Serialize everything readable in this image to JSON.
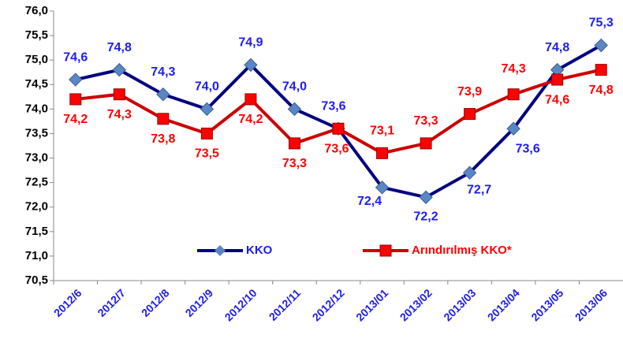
{
  "chart_data": {
    "type": "line",
    "categories": [
      "2012/6",
      "2012/7",
      "2012/8",
      "2012/9",
      "2012/10",
      "2012/11",
      "2012/12",
      "2013/01",
      "2013/02",
      "2013/03",
      "2013/04",
      "2013/05",
      "2013/06"
    ],
    "series": [
      {
        "name": "KKO",
        "color": "#000080",
        "marker_color": "#5b86c4",
        "label_color": "#1c1cf0",
        "values": [
          74.6,
          74.8,
          74.3,
          74.0,
          74.9,
          74.0,
          73.6,
          72.4,
          72.2,
          72.7,
          73.6,
          74.8,
          75.3
        ],
        "value_labels": [
          "74,6",
          "74,8",
          "74,3",
          "74,0",
          "74,9",
          "74,0",
          "73,6",
          "72,4",
          "72,2",
          "72,7",
          "73,6",
          "74,8",
          "75,3"
        ]
      },
      {
        "name": "Arındırılmış KKO*",
        "color": "#cc0000",
        "marker_color": "#ff0000",
        "label_color": "#ff0000",
        "values": [
          74.2,
          74.3,
          73.8,
          73.5,
          74.2,
          73.3,
          73.6,
          73.1,
          73.3,
          73.9,
          74.3,
          74.6,
          74.8
        ],
        "value_labels": [
          "74,2",
          "74,3",
          "73,8",
          "73,5",
          "74,2",
          "73,3",
          "73,6",
          "73,1",
          "73,3",
          "73,9",
          "74,3",
          "74,6",
          "74,8"
        ]
      }
    ],
    "ylim": [
      70.5,
      76.0
    ],
    "yticks": [
      {
        "value": 70.5,
        "label": "70,5"
      },
      {
        "value": 71.0,
        "label": "71,0"
      },
      {
        "value": 71.5,
        "label": "71,5"
      },
      {
        "value": 72.0,
        "label": "72,0"
      },
      {
        "value": 72.5,
        "label": "72,5"
      },
      {
        "value": 73.0,
        "label": "73,0"
      },
      {
        "value": 73.5,
        "label": "73,5"
      },
      {
        "value": 74.0,
        "label": "74,0"
      },
      {
        "value": 74.5,
        "label": "74,5"
      },
      {
        "value": 75.0,
        "label": "75,0"
      },
      {
        "value": 75.5,
        "label": "75,5"
      },
      {
        "value": 76.0,
        "label": "76,0"
      }
    ],
    "grid": false,
    "legend": "bottom"
  }
}
